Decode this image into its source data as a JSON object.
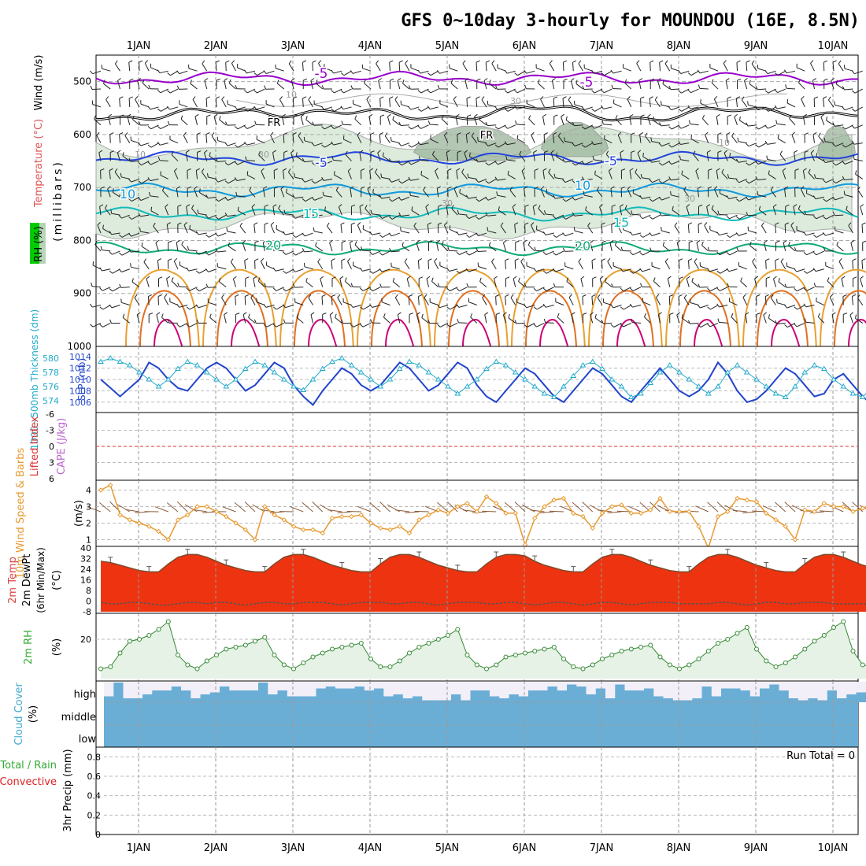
{
  "title": "GFS 0~10day 3-hourly for MOUNDOU (16E, 8.5N)",
  "days": [
    "1JAN",
    "2JAN",
    "3JAN",
    "4JAN",
    "5JAN",
    "6JAN",
    "7JAN",
    "8JAN",
    "9JAN",
    "10JAN"
  ],
  "colors": {
    "temp_violet": "#9900cc",
    "temp_blue": "#2244dd",
    "temp_lightblue": "#1199dd",
    "temp_teal": "#11bbbb",
    "temp_green": "#11aa77",
    "temp_orange": "#e8a030",
    "temp_darkorange": "#e07020",
    "temp_magenta": "#cc0077",
    "rh_fill": "#dcebdc",
    "rh_dark": "#9bb59b",
    "slp": "#2244cc",
    "thickness": "#22aacc",
    "wind10": "#e89a30",
    "cloud": "#6aaed6",
    "rain_green": "#33aa33",
    "conv_red": "#dd2222"
  },
  "chart_data": [
    {
      "type": "line",
      "panel": "upper-air",
      "ylabel": "(millibars)",
      "side_labels": [
        "RH (%)",
        "Temperature (°C)",
        "Wind (m/s)"
      ],
      "y_ticks": [
        "500",
        "600",
        "700",
        "800",
        "900",
        "1000"
      ],
      "ylim": [
        1000,
        450
      ],
      "contour_labels": [
        "-5",
        "-5",
        "FR",
        "FR",
        "-5",
        "-5",
        "10",
        "10",
        "15",
        "15",
        "20",
        "20",
        "10",
        "30",
        "30",
        "10",
        "30",
        "10",
        "30"
      ],
      "series": [
        {
          "name": "-5",
          "level_mb": 494
        },
        {
          "name": "FR",
          "level_mb": 560
        },
        {
          "name": "5",
          "level_mb": 645
        },
        {
          "name": "10",
          "level_mb": 705
        },
        {
          "name": "15",
          "level_mb": 750
        },
        {
          "name": "20",
          "level_mb": 815
        }
      ]
    },
    {
      "type": "line",
      "panel": "slp-thickness",
      "left_label": "1000~500mb Thickness (dm)",
      "right_label": "SLP (mb)",
      "left_ticks": [
        "580",
        "578",
        "576",
        "574"
      ],
      "right_ticks": [
        "1014",
        "1012",
        "1010",
        "1008",
        "1006"
      ],
      "slp_ylim": [
        1005,
        1015
      ],
      "series": [
        {
          "name": "SLP",
          "values": [
            1010,
            1008.5,
            1007,
            1008.5,
            1010,
            1013,
            1012,
            1010,
            1008.5,
            1008,
            1010,
            1012,
            1013,
            1012,
            1010,
            1008,
            1009,
            1011,
            1013,
            1012,
            1009,
            1007,
            1005.5,
            1008,
            1010,
            1012,
            1011,
            1009,
            1008,
            1009,
            1011,
            1013,
            1012,
            1010,
            1008,
            1009,
            1011,
            1013,
            1012,
            1009,
            1007,
            1006,
            1008,
            1010,
            1012,
            1011,
            1009,
            1007,
            1006,
            1008,
            1010,
            1012,
            1011,
            1009,
            1007,
            1006,
            1008,
            1010,
            1012,
            1010,
            1008,
            1007,
            1008,
            1010,
            1013,
            1011,
            1008,
            1006,
            1006.5,
            1008,
            1010,
            1012,
            1011,
            1009,
            1007,
            1007.5,
            1010,
            1011,
            1009,
            1007,
            1005.5,
            1007,
            1009,
            1012
          ]
        },
        {
          "name": "Thickness",
          "values": [
            579.5,
            580,
            579.5,
            579,
            578,
            577,
            576,
            577,
            578.5,
            579.5,
            579,
            578,
            577,
            576,
            577,
            578.5,
            579.5,
            579,
            578,
            577,
            576,
            575.5,
            577,
            578.5,
            579.5,
            580,
            579,
            578,
            577,
            576,
            577,
            578.5,
            579.5,
            579,
            578,
            577,
            576,
            575,
            576,
            577,
            578.5,
            579.5,
            579,
            578,
            577,
            576,
            575,
            574.5,
            576,
            577.5,
            579,
            579.5,
            578.5,
            577,
            576,
            574.5,
            575,
            576.5,
            578,
            579,
            578,
            577,
            576,
            575,
            576,
            578,
            579,
            578,
            577,
            576,
            575,
            574.5,
            576,
            578,
            579,
            578.5,
            577,
            576,
            575,
            574.5,
            576,
            577,
            578,
            578.5
          ]
        }
      ]
    },
    {
      "type": "line",
      "panel": "cape-lifted-index",
      "left_label": "Lifted Index",
      "right_label": "CAPE (J/kg)",
      "left_ticks": [
        "-6",
        "-3",
        "0",
        "3",
        "6"
      ],
      "ylim": [
        -6,
        6
      ],
      "reference_line": 0
    },
    {
      "type": "line",
      "panel": "wind10m",
      "left_label": "10m Wind Speed & Barbs",
      "unit_label": "(m/s)",
      "y_ticks": [
        "1",
        "2",
        "3",
        "4"
      ],
      "ylim": [
        0.5,
        4.5
      ],
      "series": [
        {
          "name": "10m Wind Speed",
          "values": [
            4.0,
            4.3,
            2.5,
            2.2,
            2.0,
            1.8,
            1.5,
            1.0,
            2.2,
            2.5,
            3.0,
            3.0,
            2.7,
            2.4,
            2.0,
            1.6,
            1.0,
            3.0,
            2.5,
            2.2,
            1.8,
            1.6,
            1.6,
            1.4,
            2.3,
            2.4,
            2.4,
            2.5,
            2.0,
            1.7,
            1.6,
            1.8,
            1.4,
            2.2,
            2.5,
            2.8,
            2.6,
            3.0,
            3.2,
            2.7,
            3.6,
            3.2,
            2.6,
            2.6,
            0.7,
            2.3,
            3.0,
            3.4,
            3.5,
            2.6,
            2.4,
            1.7,
            2.6,
            3.0,
            3.1,
            2.6,
            2.6,
            2.8,
            3.5,
            2.7,
            2.7,
            2.7,
            1.8,
            0.5,
            2.4,
            2.7,
            3.5,
            3.4,
            3.3,
            2.6,
            2.2,
            1.8,
            1.0,
            2.8,
            2.7,
            3.2,
            3.0,
            3.0,
            2.7,
            2.9,
            3.2,
            3.7,
            1.8,
            1.6
          ]
        }
      ]
    },
    {
      "type": "line",
      "panel": "temperature",
      "left_label": "2m Temp",
      "left_label2": "2m DewPt",
      "left_label3": "(6hr Min/Max)",
      "unit_label": "(°C)",
      "y_ticks": [
        "40",
        "32",
        "24",
        "16",
        "8",
        "0",
        "-8"
      ],
      "ylim": [
        -8,
        40
      ],
      "series": [
        {
          "name": "2m Temp",
          "values": [
            30,
            29,
            27,
            25,
            23,
            22,
            22,
            28,
            33,
            35,
            35,
            33,
            30,
            27,
            25,
            23,
            22,
            22,
            28,
            33,
            35,
            35,
            33,
            30,
            27,
            25,
            23,
            22,
            22,
            28,
            33,
            35,
            35,
            33,
            30,
            27,
            25,
            23,
            22,
            22,
            28,
            33,
            35,
            35,
            34,
            30,
            27,
            25,
            23,
            22,
            22,
            28,
            33,
            35,
            35,
            33,
            30,
            27,
            25,
            23,
            22,
            22,
            28,
            33,
            35,
            35,
            33,
            30,
            27,
            25,
            23,
            22,
            22,
            28,
            33,
            35,
            35,
            33,
            30,
            27,
            25,
            23,
            22,
            21
          ]
        },
        {
          "name": "2m DewPt",
          "values": [
            -1,
            -2,
            -2,
            -1,
            -1,
            -2,
            -3,
            -3,
            -2,
            -1,
            -1,
            -2,
            -1,
            -1,
            -2,
            -3,
            -2,
            -1,
            -1,
            -2,
            -2,
            -1,
            -1,
            -1,
            -2,
            -3,
            -2,
            -1,
            -1,
            -1,
            -2,
            -2,
            -1,
            -1,
            -2,
            -3,
            -2,
            -1,
            -1,
            -1,
            -2,
            -2,
            -1,
            -1,
            -2,
            -3,
            -2,
            -1,
            -1,
            -2,
            -3,
            -2,
            -1,
            -1,
            -2,
            -3,
            -2,
            -1,
            -1,
            -1,
            -2,
            -2,
            -2,
            -2,
            -1,
            -1,
            -2,
            -3,
            -2,
            -1,
            -1,
            -2,
            -2,
            -1,
            -1,
            -1,
            -2,
            -2,
            -2,
            -2,
            -2,
            -2,
            -1,
            -1
          ]
        }
      ]
    },
    {
      "type": "area",
      "panel": "rh2m",
      "left_label": "2m RH",
      "unit_label": "(%)",
      "y_ticks": [
        "20"
      ],
      "ylim": [
        0,
        32
      ],
      "series": [
        {
          "name": "2m RH",
          "values": [
            5,
            6,
            13,
            19,
            20,
            22,
            25,
            29,
            12,
            7,
            5,
            9,
            12,
            15,
            16,
            17,
            19,
            21,
            12,
            7,
            5,
            8,
            11,
            13,
            15,
            16,
            17,
            18,
            10,
            6,
            6,
            9,
            13,
            16,
            18,
            20,
            22,
            25,
            12,
            7,
            5,
            7,
            11,
            12,
            13,
            14,
            15,
            16,
            10,
            6,
            5,
            7,
            10,
            12,
            14,
            15,
            16,
            17,
            11,
            7,
            5,
            7,
            10,
            14,
            18,
            20,
            23,
            26,
            15,
            9,
            6,
            8,
            11,
            15,
            19,
            22,
            26,
            29,
            14,
            7,
            6,
            9,
            14,
            18,
            19,
            20,
            22,
            23
          ]
        }
      ]
    },
    {
      "type": "bar",
      "panel": "cloud",
      "left_label": "Cloud Cover",
      "unit_label": "(%)",
      "row_labels": [
        "high",
        "middle",
        "low"
      ],
      "series": [
        {
          "name": "high",
          "values": [
            30,
            100,
            20,
            20,
            40,
            60,
            60,
            80,
            60,
            20,
            40,
            50,
            80,
            60,
            60,
            60,
            100,
            40,
            60,
            30,
            30,
            30,
            70,
            80,
            70,
            70,
            80,
            60,
            70,
            30,
            40,
            20,
            30,
            10,
            10,
            10,
            40,
            10,
            60,
            60,
            30,
            20,
            40,
            30,
            60,
            60,
            80,
            60,
            90,
            80,
            40,
            70,
            20,
            90,
            60,
            60,
            70,
            30,
            20,
            10,
            10,
            20,
            80,
            30,
            70,
            70,
            60,
            30,
            70,
            90,
            60,
            20,
            10,
            20,
            10,
            60,
            20,
            40,
            50,
            60,
            80,
            20,
            10,
            10
          ]
        },
        {
          "name": "middle",
          "values": [
            0,
            0,
            0,
            0,
            0,
            0,
            0,
            0,
            0,
            0,
            0,
            0,
            0,
            0,
            0,
            0,
            0,
            0,
            0,
            0,
            0,
            0,
            0,
            0,
            0,
            0,
            0,
            0,
            0,
            0,
            0,
            0,
            0,
            0,
            0,
            0,
            0,
            0,
            0,
            0,
            0,
            0,
            0,
            0,
            0,
            0,
            0,
            0,
            0,
            0,
            0,
            0,
            0,
            0,
            0,
            0,
            0,
            0,
            0,
            0,
            0,
            0,
            0,
            0,
            0,
            0,
            0,
            0,
            0,
            0,
            0,
            0,
            0,
            0,
            0,
            0,
            0,
            0,
            0,
            0,
            0,
            0,
            0,
            0
          ]
        },
        {
          "name": "low",
          "values": [
            0,
            0,
            0,
            0,
            0,
            0,
            0,
            0,
            0,
            0,
            0,
            0,
            0,
            0,
            0,
            0,
            0,
            0,
            0,
            0,
            0,
            0,
            0,
            0,
            0,
            0,
            0,
            0,
            0,
            0,
            0,
            0,
            0,
            0,
            0,
            0,
            0,
            0,
            0,
            0,
            0,
            0,
            0,
            0,
            0,
            0,
            0,
            0,
            0,
            0,
            0,
            0,
            0,
            0,
            0,
            0,
            0,
            0,
            0,
            0,
            0,
            0,
            0,
            0,
            0,
            0,
            0,
            0,
            0,
            0,
            0,
            0,
            0,
            0,
            0,
            0,
            0,
            0,
            0,
            0,
            0,
            0,
            0,
            0
          ]
        }
      ]
    },
    {
      "type": "bar",
      "panel": "precip",
      "left_label": "Total / Rain",
      "left_label2": "Convective",
      "unit_label": "3hr Precip (mm)",
      "y_ticks": [
        "0",
        "0.2",
        "0.4",
        "0.6",
        "0.8"
      ],
      "ylim": [
        0,
        0.9
      ],
      "run_total": "Run Total = 0",
      "series": [
        {
          "name": "Total",
          "values": [
            0,
            0,
            0,
            0,
            0,
            0,
            0,
            0,
            0,
            0,
            0,
            0,
            0,
            0,
            0,
            0,
            0,
            0,
            0,
            0,
            0,
            0,
            0,
            0,
            0,
            0,
            0,
            0,
            0,
            0,
            0,
            0,
            0,
            0,
            0,
            0,
            0,
            0,
            0,
            0,
            0,
            0,
            0,
            0,
            0,
            0,
            0,
            0,
            0,
            0,
            0,
            0,
            0,
            0,
            0,
            0,
            0,
            0,
            0,
            0,
            0,
            0,
            0,
            0,
            0,
            0,
            0,
            0,
            0,
            0,
            0,
            0,
            0,
            0,
            0,
            0,
            0,
            0,
            0,
            0,
            0,
            0,
            0,
            0
          ]
        }
      ]
    }
  ]
}
